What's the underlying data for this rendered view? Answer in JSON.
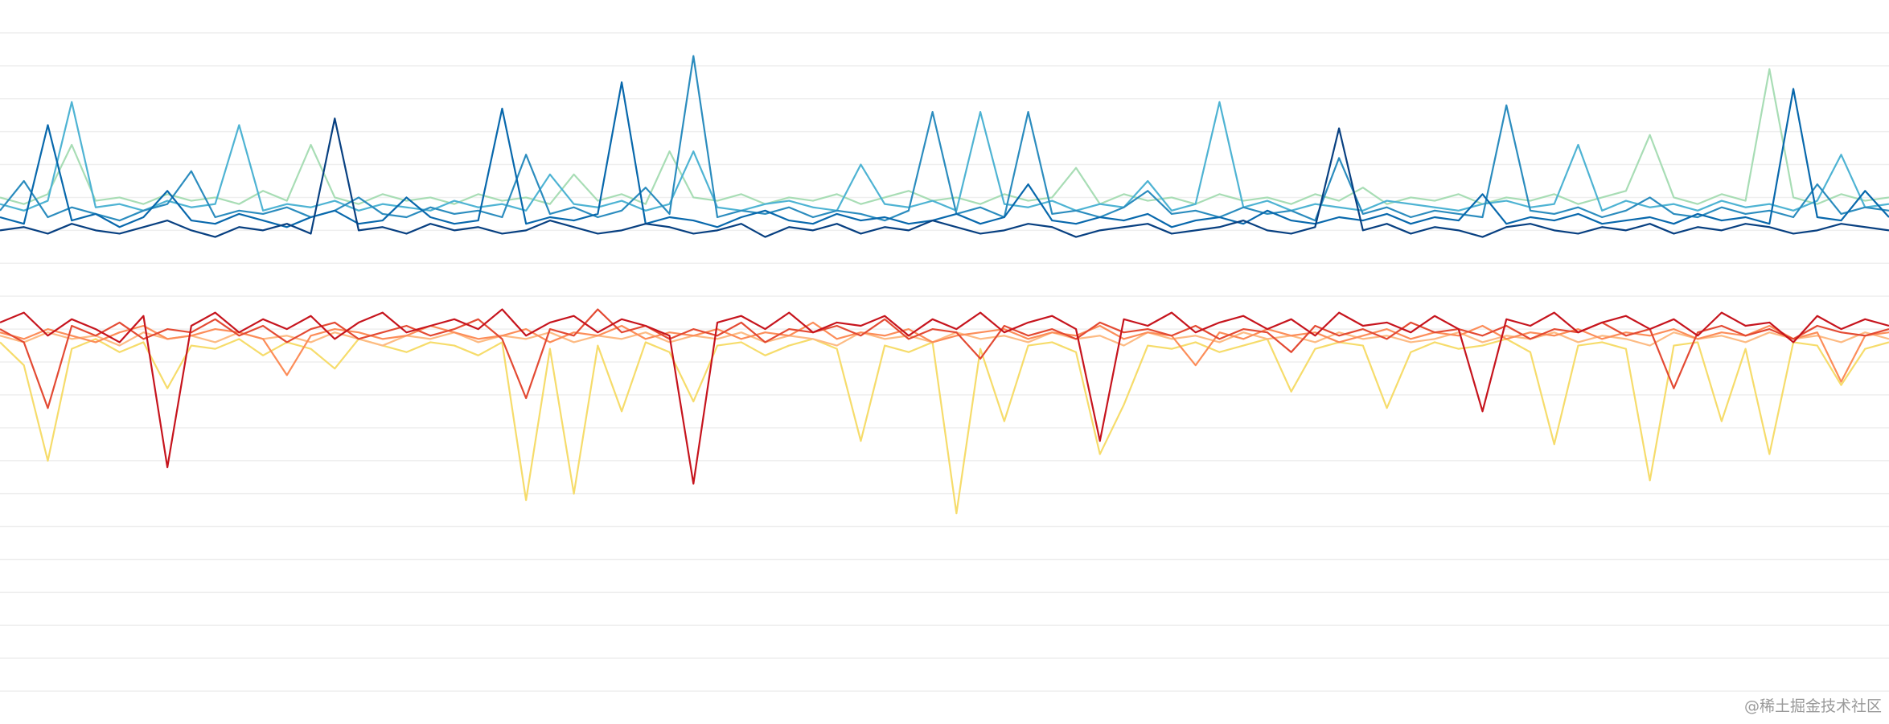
{
  "chart_data": {
    "type": "line",
    "watermark": "@稀土掘金技术社区",
    "xlim": [
      0,
      79
    ],
    "ylim": [
      0,
      22
    ],
    "yticks": [
      1,
      2,
      3,
      4,
      5,
      6,
      7,
      8,
      9,
      10,
      11,
      12,
      13,
      14,
      15,
      16,
      17,
      18,
      19,
      20,
      21
    ],
    "grid": true,
    "x": [
      0,
      1,
      2,
      3,
      4,
      5,
      6,
      7,
      8,
      9,
      10,
      11,
      12,
      13,
      14,
      15,
      16,
      17,
      18,
      19,
      20,
      21,
      22,
      23,
      24,
      25,
      26,
      27,
      28,
      29,
      30,
      31,
      32,
      33,
      34,
      35,
      36,
      37,
      38,
      39,
      40,
      41,
      42,
      43,
      44,
      45,
      46,
      47,
      48,
      49,
      50,
      51,
      52,
      53,
      54,
      55,
      56,
      57,
      58,
      59,
      60,
      61,
      62,
      63,
      64,
      65,
      66,
      67,
      68,
      69,
      70,
      71,
      72,
      73,
      74,
      75,
      76,
      77,
      78,
      79
    ],
    "series": [
      {
        "color": "#a8ddb5",
        "values": [
          16.0,
          15.8,
          16.1,
          17.6,
          15.9,
          16.0,
          15.8,
          16.1,
          15.9,
          16.0,
          15.8,
          16.2,
          15.9,
          17.6,
          16.0,
          15.8,
          16.1,
          15.9,
          16.0,
          15.8,
          16.1,
          15.9,
          16.0,
          15.8,
          16.7,
          15.9,
          16.1,
          15.8,
          17.4,
          16.0,
          15.9,
          16.1,
          15.8,
          16.0,
          15.9,
          16.1,
          15.8,
          16.0,
          16.2,
          15.9,
          16.0,
          15.8,
          16.1,
          15.9,
          16.0,
          16.9,
          15.8,
          16.1,
          15.9,
          16.0,
          15.8,
          16.1,
          15.9,
          16.0,
          15.8,
          16.1,
          15.9,
          16.3,
          15.8,
          16.0,
          15.9,
          16.1,
          15.8,
          16.0,
          15.9,
          16.1,
          15.8,
          16.0,
          16.2,
          17.9,
          16.0,
          15.8,
          16.1,
          15.9,
          19.9,
          16.0,
          15.8,
          16.1,
          15.9,
          16.0
        ]
      },
      {
        "color": "#4eb3d3",
        "values": [
          15.8,
          15.6,
          15.9,
          18.9,
          15.7,
          15.8,
          15.6,
          15.9,
          15.7,
          15.8,
          18.2,
          15.6,
          15.8,
          15.7,
          15.9,
          15.6,
          15.8,
          15.7,
          15.6,
          15.9,
          15.7,
          15.8,
          15.6,
          16.7,
          15.8,
          15.7,
          15.9,
          15.6,
          15.8,
          17.4,
          15.7,
          15.6,
          15.8,
          15.9,
          15.7,
          15.6,
          17.0,
          15.8,
          15.7,
          15.9,
          15.6,
          18.6,
          15.8,
          15.7,
          15.9,
          15.6,
          15.8,
          15.7,
          16.5,
          15.6,
          15.8,
          18.9,
          15.7,
          15.9,
          15.6,
          15.8,
          15.7,
          15.6,
          15.9,
          15.8,
          15.7,
          15.6,
          15.8,
          15.9,
          15.7,
          15.8,
          17.6,
          15.6,
          15.9,
          15.7,
          15.8,
          15.6,
          15.9,
          15.7,
          15.8,
          15.6,
          15.9,
          17.3,
          15.7,
          15.8
        ]
      },
      {
        "color": "#2b8cbe",
        "values": [
          15.6,
          16.5,
          15.4,
          15.7,
          15.5,
          15.3,
          15.6,
          15.8,
          16.8,
          15.4,
          15.6,
          15.5,
          15.7,
          15.4,
          15.6,
          16.0,
          15.5,
          15.4,
          15.7,
          15.5,
          15.6,
          15.4,
          17.3,
          15.5,
          15.7,
          15.4,
          15.6,
          16.3,
          15.5,
          20.3,
          15.4,
          15.6,
          15.5,
          15.7,
          15.4,
          15.6,
          15.5,
          15.3,
          15.6,
          18.6,
          15.5,
          15.7,
          15.4,
          18.6,
          15.5,
          15.6,
          15.4,
          15.7,
          16.2,
          15.5,
          15.6,
          15.4,
          15.7,
          15.5,
          15.6,
          15.3,
          17.2,
          15.5,
          15.7,
          15.4,
          15.6,
          15.5,
          15.4,
          18.8,
          15.6,
          15.5,
          15.7,
          15.4,
          15.6,
          16.0,
          15.5,
          15.4,
          15.7,
          15.5,
          15.6,
          15.4,
          16.4,
          15.5,
          15.7,
          15.6
        ]
      },
      {
        "color": "#0868ac",
        "values": [
          15.4,
          15.2,
          18.2,
          15.3,
          15.5,
          15.1,
          15.4,
          16.2,
          15.3,
          15.2,
          15.5,
          15.3,
          15.1,
          15.4,
          15.6,
          15.2,
          15.3,
          16.0,
          15.4,
          15.2,
          15.3,
          18.7,
          15.2,
          15.4,
          15.3,
          15.5,
          19.5,
          15.2,
          15.4,
          15.3,
          15.1,
          15.4,
          15.6,
          15.3,
          15.2,
          15.5,
          15.3,
          15.4,
          15.2,
          15.3,
          15.5,
          15.2,
          15.4,
          16.4,
          15.3,
          15.2,
          15.4,
          15.3,
          15.5,
          15.1,
          15.3,
          15.4,
          15.2,
          15.6,
          15.3,
          15.2,
          15.4,
          15.3,
          15.5,
          15.2,
          15.4,
          15.3,
          16.1,
          15.2,
          15.4,
          15.3,
          15.5,
          15.2,
          15.3,
          15.4,
          15.2,
          15.5,
          15.3,
          15.4,
          15.2,
          19.3,
          15.4,
          15.3,
          16.2,
          15.4
        ]
      },
      {
        "color": "#084081",
        "values": [
          15.0,
          15.1,
          14.9,
          15.2,
          15.0,
          14.9,
          15.1,
          15.3,
          15.0,
          14.8,
          15.1,
          15.0,
          15.2,
          14.9,
          18.4,
          15.0,
          15.1,
          14.9,
          15.2,
          15.0,
          15.1,
          14.9,
          15.0,
          15.3,
          15.1,
          14.9,
          15.0,
          15.2,
          15.1,
          14.9,
          15.0,
          15.2,
          14.8,
          15.1,
          15.0,
          15.2,
          14.9,
          15.1,
          15.0,
          15.3,
          15.1,
          14.9,
          15.0,
          15.2,
          15.1,
          14.8,
          15.0,
          15.1,
          15.2,
          14.9,
          15.0,
          15.1,
          15.3,
          15.0,
          14.9,
          15.1,
          18.1,
          15.0,
          15.2,
          14.9,
          15.1,
          15.0,
          14.8,
          15.1,
          15.2,
          15.0,
          14.9,
          15.1,
          15.0,
          15.2,
          14.9,
          15.1,
          15.0,
          15.2,
          15.1,
          14.9,
          15.0,
          15.2,
          15.1,
          15.0
        ]
      },
      {
        "color": "#f6dc6b",
        "values": [
          11.6,
          10.9,
          8.0,
          11.4,
          11.7,
          11.3,
          11.6,
          10.2,
          11.5,
          11.4,
          11.7,
          11.2,
          11.6,
          11.4,
          10.8,
          11.7,
          11.5,
          11.3,
          11.6,
          11.5,
          11.2,
          11.6,
          6.8,
          11.4,
          7.0,
          11.5,
          9.5,
          11.6,
          11.3,
          9.8,
          11.5,
          11.6,
          11.2,
          11.5,
          11.7,
          11.4,
          8.6,
          11.5,
          11.3,
          11.6,
          6.4,
          11.4,
          9.2,
          11.5,
          11.6,
          11.3,
          8.2,
          9.7,
          11.5,
          11.4,
          11.6,
          11.3,
          11.5,
          11.7,
          10.1,
          11.4,
          11.6,
          11.5,
          9.6,
          11.3,
          11.6,
          11.4,
          11.5,
          11.7,
          11.3,
          8.5,
          11.5,
          11.6,
          11.4,
          7.4,
          11.5,
          11.6,
          9.2,
          11.4,
          8.2,
          11.6,
          11.5,
          10.3,
          11.4,
          11.6
        ]
      },
      {
        "color": "#fdbb84",
        "values": [
          11.8,
          11.6,
          11.9,
          11.7,
          11.8,
          11.5,
          11.9,
          11.7,
          11.8,
          11.6,
          11.9,
          11.7,
          11.8,
          11.6,
          11.9,
          11.7,
          11.5,
          11.8,
          11.7,
          11.9,
          11.6,
          11.8,
          11.7,
          11.9,
          11.6,
          11.8,
          11.7,
          11.9,
          11.6,
          11.8,
          11.7,
          11.9,
          11.6,
          11.8,
          11.7,
          11.5,
          11.9,
          11.7,
          11.8,
          11.6,
          11.9,
          11.7,
          11.8,
          11.6,
          11.9,
          11.7,
          11.8,
          11.5,
          11.9,
          11.7,
          11.8,
          11.6,
          11.9,
          11.7,
          11.8,
          11.6,
          11.9,
          11.7,
          11.8,
          11.6,
          11.7,
          11.9,
          11.6,
          11.8,
          11.7,
          11.9,
          11.6,
          11.8,
          11.7,
          11.5,
          11.9,
          11.7,
          11.8,
          11.6,
          11.9,
          11.7,
          11.8,
          11.6,
          11.9,
          11.7
        ]
      },
      {
        "color": "#fc8d59",
        "values": [
          11.9,
          11.7,
          12.0,
          11.8,
          11.6,
          11.9,
          12.1,
          11.7,
          11.8,
          12.0,
          11.9,
          11.7,
          10.6,
          11.8,
          12.0,
          11.9,
          11.7,
          11.8,
          12.1,
          11.9,
          11.7,
          11.8,
          12.0,
          11.6,
          11.9,
          11.8,
          12.1,
          11.7,
          11.9,
          11.8,
          12.0,
          11.7,
          11.9,
          11.8,
          12.2,
          11.7,
          11.9,
          11.8,
          12.0,
          11.6,
          11.8,
          11.9,
          12.0,
          11.7,
          11.9,
          11.8,
          12.1,
          11.7,
          11.9,
          11.8,
          10.9,
          11.9,
          11.7,
          12.0,
          11.8,
          11.9,
          11.6,
          11.8,
          12.0,
          11.7,
          11.9,
          11.8,
          12.1,
          11.7,
          11.9,
          11.8,
          12.0,
          11.7,
          11.9,
          11.8,
          12.0,
          11.7,
          11.9,
          11.8,
          12.1,
          11.7,
          11.9,
          10.4,
          11.8,
          11.9
        ]
      },
      {
        "color": "#e34a33",
        "values": [
          12.0,
          11.6,
          9.6,
          12.1,
          11.8,
          12.2,
          11.7,
          12.0,
          11.9,
          12.3,
          11.8,
          12.1,
          11.6,
          12.0,
          12.2,
          11.7,
          11.9,
          12.1,
          11.8,
          12.0,
          12.3,
          11.7,
          9.9,
          12.0,
          11.8,
          12.6,
          11.9,
          12.1,
          11.7,
          12.0,
          11.8,
          12.2,
          11.6,
          12.0,
          11.9,
          12.1,
          11.8,
          12.3,
          11.7,
          12.0,
          11.9,
          11.1,
          12.1,
          11.8,
          12.0,
          11.7,
          12.2,
          11.9,
          12.0,
          11.8,
          12.1,
          11.7,
          12.0,
          11.9,
          11.3,
          12.1,
          11.8,
          12.0,
          11.7,
          12.2,
          11.9,
          12.0,
          11.8,
          12.1,
          11.7,
          12.0,
          11.9,
          12.2,
          11.8,
          12.0,
          10.2,
          11.9,
          12.1,
          11.8,
          12.0,
          11.7,
          12.1,
          11.9,
          11.8,
          12.0
        ]
      },
      {
        "color": "#c6141d",
        "values": [
          12.2,
          12.5,
          11.8,
          12.3,
          12.0,
          11.6,
          12.4,
          7.8,
          12.1,
          12.5,
          11.9,
          12.3,
          12.0,
          12.4,
          11.7,
          12.2,
          12.5,
          11.9,
          12.1,
          12.3,
          12.0,
          12.6,
          11.8,
          12.2,
          12.4,
          11.9,
          12.3,
          12.1,
          11.8,
          7.3,
          12.2,
          12.4,
          12.0,
          12.5,
          11.9,
          12.2,
          12.1,
          12.4,
          11.8,
          12.3,
          12.0,
          12.5,
          11.9,
          12.2,
          12.4,
          12.0,
          8.6,
          12.3,
          12.1,
          12.5,
          11.9,
          12.2,
          12.4,
          12.0,
          12.3,
          11.8,
          12.5,
          12.1,
          12.2,
          11.9,
          12.4,
          12.0,
          9.5,
          12.3,
          12.1,
          12.5,
          11.9,
          12.2,
          12.4,
          12.0,
          12.3,
          11.8,
          12.5,
          12.1,
          12.2,
          11.6,
          12.4,
          12.0,
          12.3,
          12.1
        ]
      }
    ]
  }
}
